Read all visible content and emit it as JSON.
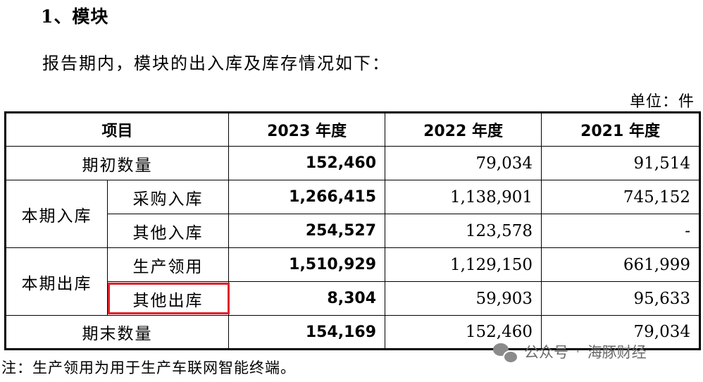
{
  "heading": "1、模块",
  "intro": "报告期内，模块的出入库及库存情况如下：",
  "unit": "单位：件",
  "table": {
    "headers": [
      "项目",
      "2023 年度",
      "2022 年度",
      "2021 年度"
    ],
    "opening": {
      "label": "期初数量",
      "values": [
        "152,460",
        "79,034",
        "91,514"
      ]
    },
    "inbound_group": "本期入库",
    "purchase_in": {
      "label": "采购入库",
      "values": [
        "1,266,415",
        "1,138,901",
        "745,152"
      ]
    },
    "other_in": {
      "label": "其他入库",
      "values": [
        "254,527",
        "123,578",
        "-"
      ]
    },
    "outbound_group": "本期出库",
    "production_use": {
      "label": "生产领用",
      "values": [
        "1,510,929",
        "1,129,150",
        "661,999"
      ]
    },
    "other_out": {
      "label": "其他出库",
      "values": [
        "8,304",
        "59,903",
        "95,633"
      ]
    },
    "closing": {
      "label": "期末数量",
      "values": [
        "154,169",
        "152,460",
        "79,034"
      ]
    }
  },
  "highlight_color": "#e0202a",
  "note": "注：生产领用为用于生产车联网智能终端。",
  "watermark": {
    "icon": "wechat-icon",
    "channel": "公众号",
    "separator": "·",
    "name": "海豚财经"
  }
}
